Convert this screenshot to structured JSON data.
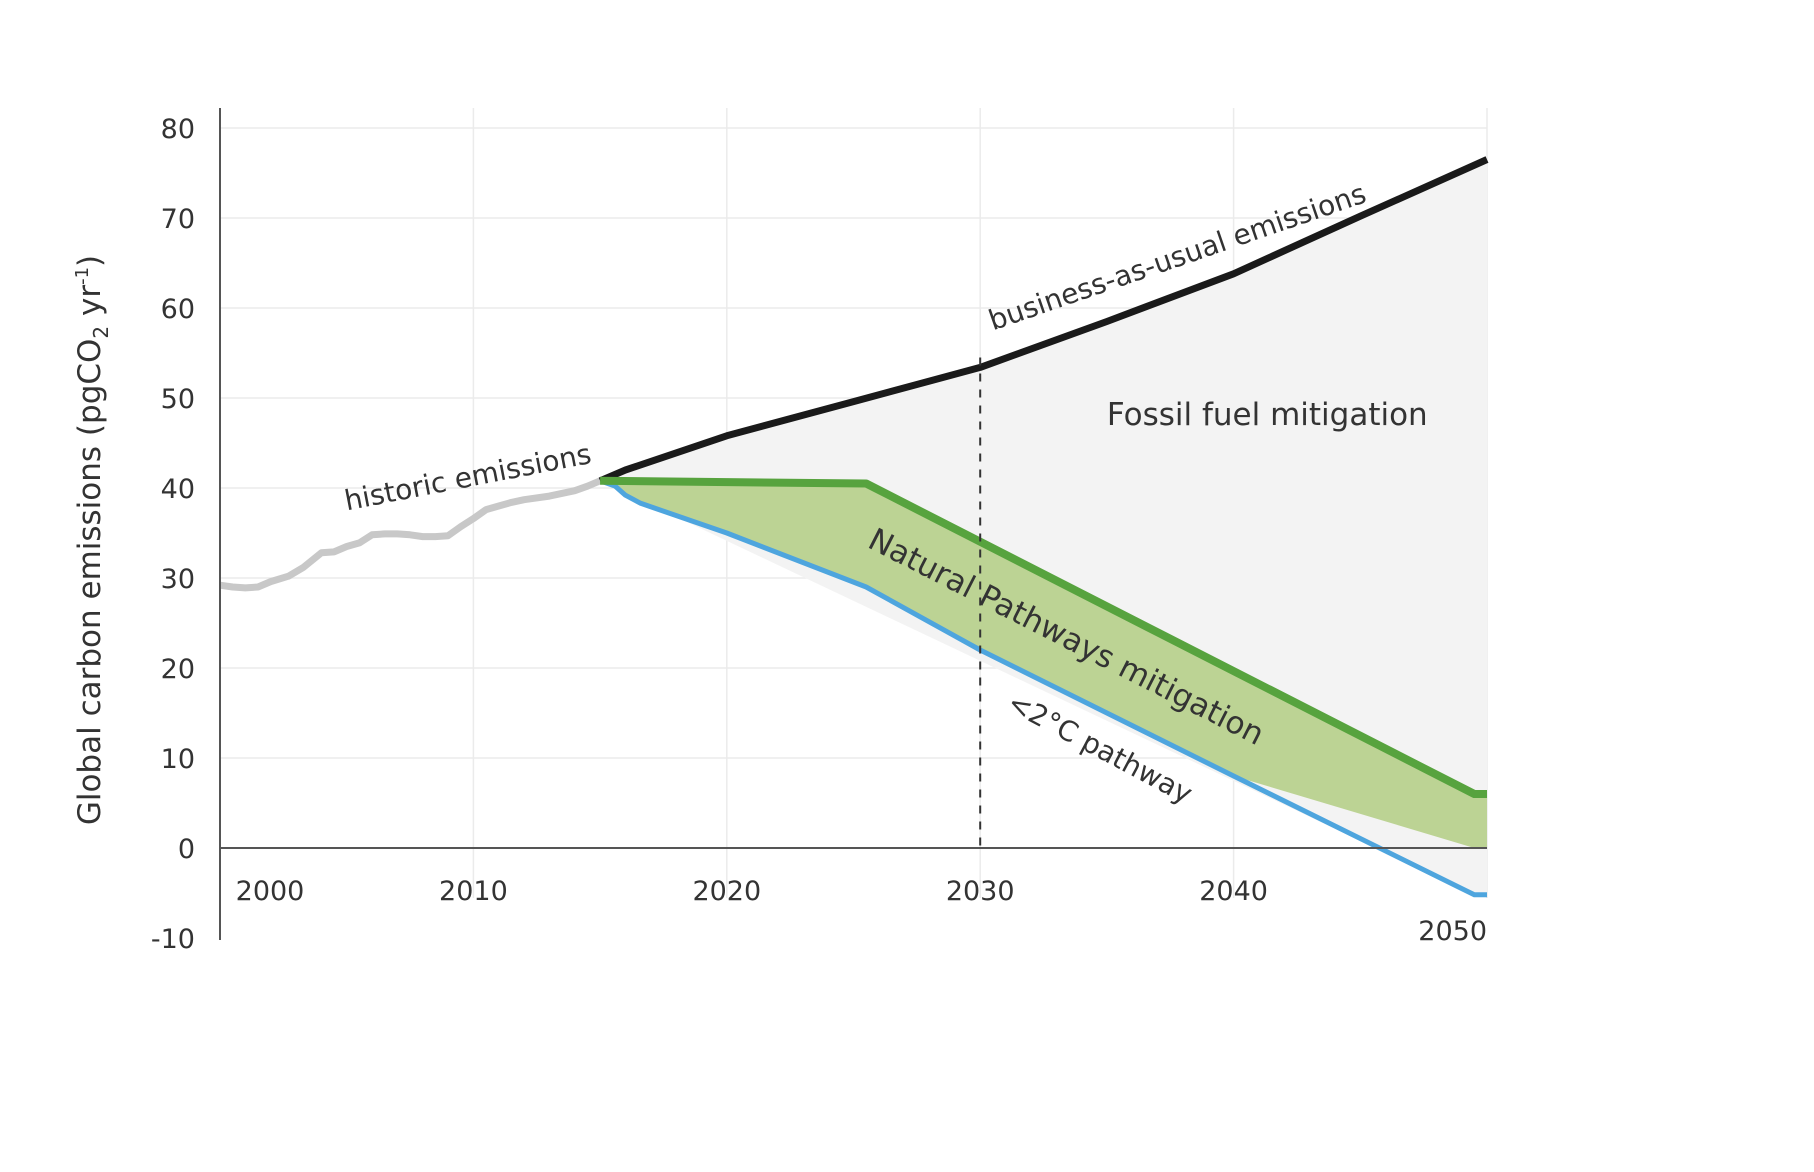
{
  "chart_data": {
    "type": "area",
    "title": "",
    "xlabel": "",
    "ylabel": "Global carbon emissions (pgCO",
    "ylabel_sub": "2",
    "ylabel_unit": " yr",
    "ylabel_sup": "-1",
    "ylabel_close": ")",
    "xlim": [
      2000,
      2050
    ],
    "ylim": [
      -10,
      80
    ],
    "grid": true,
    "x_ticks": [
      {
        "value": 2000,
        "label": "2000"
      },
      {
        "value": 2010,
        "label": "2010"
      },
      {
        "value": 2020,
        "label": "2020"
      },
      {
        "value": 2030,
        "label": "2030"
      },
      {
        "value": 2040,
        "label": "2040"
      },
      {
        "value": 2050,
        "label": "2050"
      }
    ],
    "y_ticks": [
      {
        "value": 80,
        "label": "80"
      },
      {
        "value": 70,
        "label": "70"
      },
      {
        "value": 60,
        "label": "60"
      },
      {
        "value": 50,
        "label": "50"
      },
      {
        "value": 40,
        "label": "40"
      },
      {
        "value": 30,
        "label": "30"
      },
      {
        "value": 20,
        "label": "20"
      },
      {
        "value": 10,
        "label": "10"
      },
      {
        "value": 0,
        "label": "0"
      },
      {
        "value": -10,
        "label": "-10"
      }
    ],
    "reference_line": {
      "x": 2030,
      "style": "dashed",
      "color": "#333333"
    },
    "series": [
      {
        "name": "historic emissions",
        "color": "#c8c8c8",
        "x": [
          2000,
          2000.5,
          2001,
          2001.5,
          2002,
          2002.7,
          2003.3,
          2004,
          2004.5,
          2005,
          2005.5,
          2006,
          2006.5,
          2007,
          2007.5,
          2008,
          2008.5,
          2009,
          2009.5,
          2010,
          2010.5,
          2011,
          2011.5,
          2012,
          2013,
          2014,
          2014.5,
          2015
        ],
        "values": [
          29.2,
          29.0,
          28.9,
          29.0,
          29.6,
          30.2,
          31.2,
          32.8,
          32.9,
          33.5,
          33.9,
          34.8,
          34.9,
          34.9,
          34.8,
          34.6,
          34.6,
          34.7,
          35.7,
          36.6,
          37.6,
          38.0,
          38.4,
          38.7,
          39.1,
          39.7,
          40.2,
          40.8
        ]
      },
      {
        "name": "business-as-usual emissions",
        "color": "#1a1a1a",
        "x": [
          2015,
          2016,
          2020,
          2025,
          2030,
          2035,
          2040,
          2045,
          2050
        ],
        "values": [
          40.8,
          42.0,
          45.8,
          49.6,
          53.4,
          58.5,
          63.8,
          70.2,
          76.5
        ]
      },
      {
        "name": "Natural Pathways mitigation (upper)",
        "color": "#57a33e",
        "x": [
          2015,
          2025.5,
          2049.5,
          2050
        ],
        "values": [
          40.8,
          40.5,
          6.0,
          6.0
        ]
      },
      {
        "name": "<2°C pathway",
        "color": "#4ea5de",
        "x": [
          2015,
          2015.6,
          2016,
          2016.6,
          2020,
          2025.5,
          2030,
          2040,
          2049.5,
          2050
        ],
        "values": [
          40.8,
          40.2,
          39.2,
          38.3,
          35.0,
          29.0,
          22.0,
          8.0,
          -5.2,
          -5.2
        ]
      }
    ],
    "areas": [
      {
        "name": "Fossil fuel mitigation",
        "color": "#f3f3f3",
        "between": [
          "business-as-usual emissions",
          "Natural Pathways mitigation (upper)"
        ]
      },
      {
        "name": "Natural Pathways mitigation",
        "color": "#bcd394",
        "between": [
          "Natural Pathways mitigation (upper)",
          "<2°C pathway"
        ]
      }
    ],
    "annotations": [
      {
        "text": "historic emissions",
        "x": 2005,
        "y": 37.5,
        "angle": -11
      },
      {
        "text": "business-as-usual emissions",
        "x": 2030.5,
        "y": 57.5,
        "angle": -19
      },
      {
        "text": "Fossil fuel mitigation",
        "x": 2035,
        "y": 47,
        "angle": 0
      },
      {
        "text": "Natural Pathways mitigation",
        "x": 2025.5,
        "y": 33.5,
        "angle": 27
      },
      {
        "text": "<2°C pathway",
        "x": 2031,
        "y": 15.5,
        "angle": 28
      }
    ],
    "legend": "none"
  }
}
